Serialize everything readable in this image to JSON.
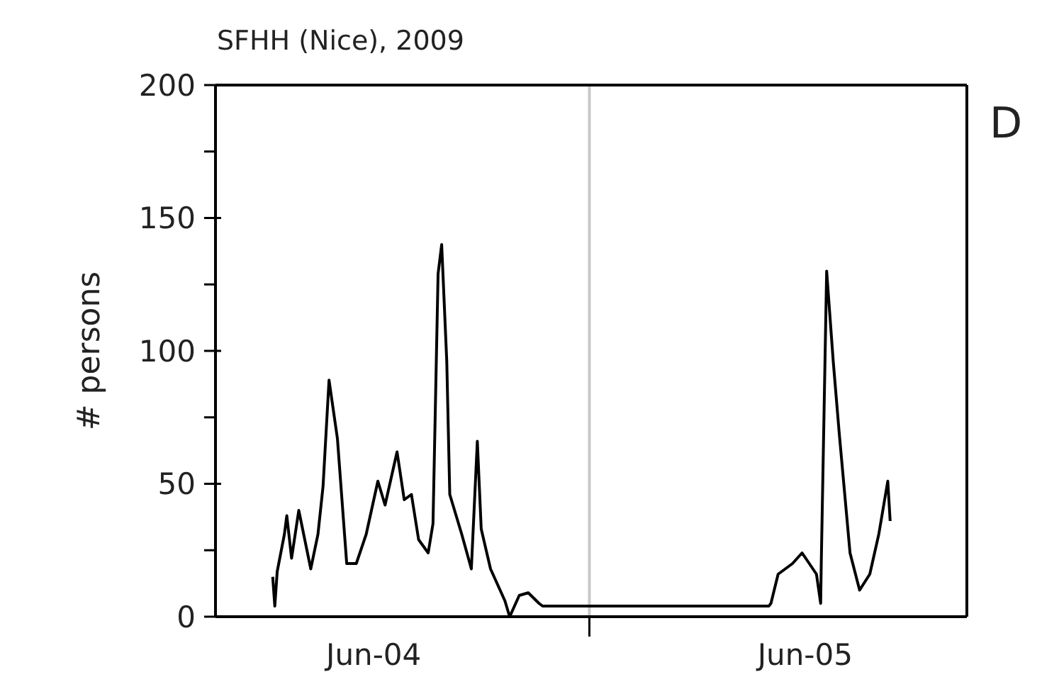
{
  "chart_data": {
    "type": "line",
    "title": "SFHH (Nice), 2009",
    "ylabel": "# persons",
    "annotations": [
      "D"
    ],
    "x": [
      "2009-06-04T06:23",
      "2009-06-04T06:30",
      "2009-06-04T06:38",
      "2009-06-04T07:02",
      "2009-06-04T07:10",
      "2009-06-04T07:26",
      "2009-06-04T07:50",
      "2009-06-04T08:30",
      "2009-06-04T08:54",
      "2009-06-04T09:11",
      "2009-06-04T09:31",
      "2009-06-04T09:59",
      "2009-06-04T10:30",
      "2009-06-04T11:02",
      "2009-06-04T11:35",
      "2009-06-04T12:14",
      "2009-06-04T12:38",
      "2009-06-04T13:18",
      "2009-06-04T13:42",
      "2009-06-04T14:06",
      "2009-06-04T14:30",
      "2009-06-04T15:02",
      "2009-06-04T15:18",
      "2009-06-04T15:35",
      "2009-06-04T15:47",
      "2009-06-04T16:04",
      "2009-06-04T16:14",
      "2009-06-04T16:54",
      "2009-06-04T17:26",
      "2009-06-04T17:46",
      "2009-06-04T17:59",
      "2009-06-04T18:30",
      "2009-06-04T19:18",
      "2009-06-04T19:34",
      "2009-06-04T20:06",
      "2009-06-04T20:36",
      "2009-06-04T21:12",
      "2009-06-04T21:24",
      "2009-06-05T09:59",
      "2009-06-05T10:06",
      "2009-06-05T10:30",
      "2009-06-05T11:18",
      "2009-06-05T11:50",
      "2009-06-05T12:38",
      "2009-06-05T12:52",
      "2009-06-05T12:54",
      "2009-06-05T13:12",
      "2009-06-05T13:34",
      "2009-06-05T13:54",
      "2009-06-05T14:30",
      "2009-06-05T15:02",
      "2009-06-05T15:36",
      "2009-06-05T16:06",
      "2009-06-05T16:36",
      "2009-06-05T16:44"
    ],
    "series": [
      {
        "color": "#000000",
        "values": [
          15,
          4,
          17,
          31,
          38,
          22,
          40,
          18,
          31,
          49,
          89,
          67,
          20,
          20,
          31,
          51,
          42,
          62,
          44,
          46,
          29,
          24,
          35,
          129,
          140,
          96,
          46,
          31,
          18,
          66,
          33,
          18,
          6,
          0,
          8,
          9,
          5,
          4,
          4,
          5,
          16,
          20,
          24,
          16,
          5,
          20,
          130,
          96,
          69,
          24,
          10,
          16,
          31,
          51,
          36
        ]
      }
    ],
    "xlim": [
      "2009-06-04T03:12",
      "2009-06-05T21:00"
    ],
    "xticks": [
      {
        "value": "2009-06-04T12:00",
        "label": "Jun-04"
      },
      {
        "value": "2009-06-05T00:00",
        "label": null
      },
      {
        "value": "2009-06-05T12:00",
        "label": "Jun-05"
      }
    ],
    "ylim": [
      0,
      200
    ],
    "yticks": [
      0,
      {
        "value": 25,
        "label": null
      },
      50,
      {
        "value": 75,
        "label": null
      },
      100,
      {
        "value": 125,
        "label": null
      },
      150,
      {
        "value": 175,
        "label": null
      },
      200
    ],
    "ref_lines": [
      {
        "axis": "x",
        "value": "2009-06-05T00:00",
        "color": "#c8c8c8"
      }
    ],
    "grid": false,
    "legend": false,
    "marker": "none",
    "line_style": "solid"
  }
}
